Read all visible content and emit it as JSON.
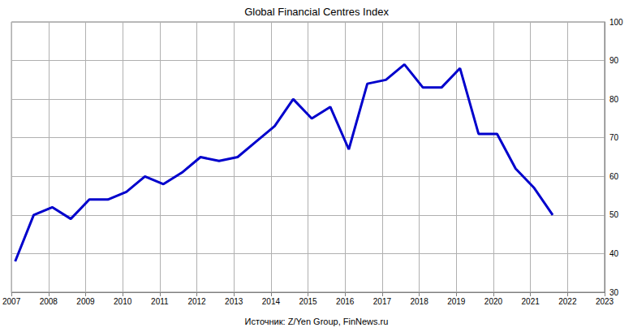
{
  "chart_data": {
    "type": "line",
    "title": "Global Financial Centres Index",
    "source": "Источник: Z/Yen Group, FinNews.ru",
    "x": [
      2007.1,
      2007.6,
      2008.1,
      2008.6,
      2009.1,
      2009.6,
      2010.1,
      2010.6,
      2011.1,
      2011.6,
      2012.1,
      2012.6,
      2013.1,
      2013.6,
      2014.1,
      2014.6,
      2015.1,
      2015.6,
      2016.1,
      2016.6,
      2017.1,
      2017.6,
      2018.1,
      2018.6,
      2019.1,
      2019.6,
      2020.1,
      2020.6,
      2021.1,
      2021.6
    ],
    "values": [
      38,
      50,
      52,
      49,
      54,
      54,
      56,
      60,
      58,
      61,
      65,
      64,
      65,
      69,
      73,
      80,
      75,
      78,
      67,
      84,
      85,
      89,
      83,
      83,
      88,
      71,
      71,
      62,
      57,
      50
    ],
    "color": "#0000cc",
    "xlim": [
      2007,
      2023
    ],
    "xticks": [
      2007,
      2008,
      2009,
      2010,
      2011,
      2012,
      2013,
      2014,
      2015,
      2016,
      2017,
      2018,
      2019,
      2020,
      2021,
      2022,
      2023
    ],
    "ylim": [
      30,
      100
    ],
    "yticks": [
      30,
      40,
      50,
      60,
      70,
      80,
      90,
      100
    ],
    "grid": true
  }
}
